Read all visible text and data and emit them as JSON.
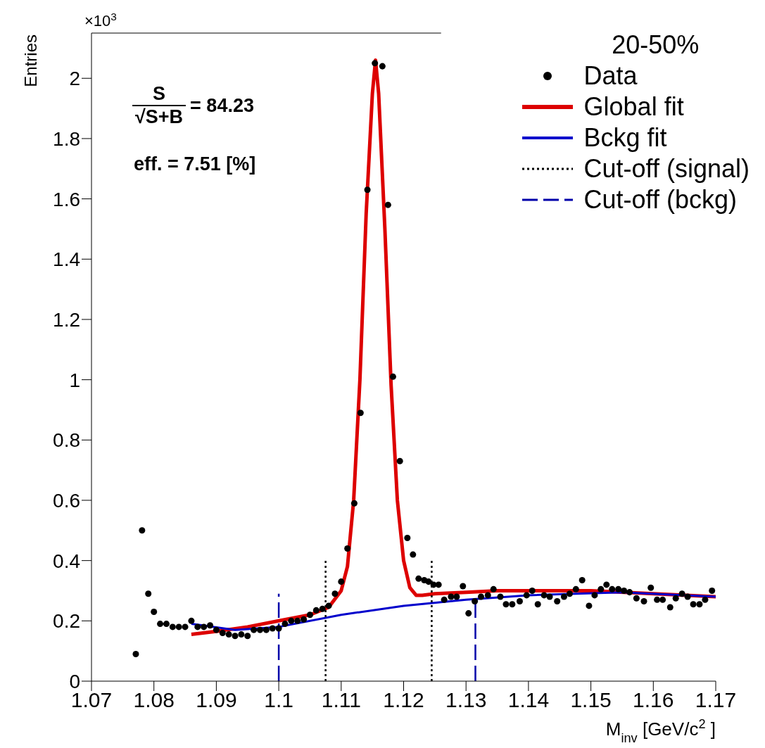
{
  "chart_data": {
    "type": "scatter",
    "xlabel": "M$_{inv}$ [GeV/c$^{2}$]",
    "ylabel": "Entries",
    "legend_title": "20-50%",
    "legend": "top right",
    "annotations": [
      "×10$^{3}$",
      "S",
      "√S+B",
      "= 84.23",
      "eff. = 7.51 [%]"
    ],
    "xlim": [
      1.07,
      1.17
    ],
    "xticks": [
      1.07,
      1.08,
      1.09,
      1.1,
      1.11,
      1.12,
      1.13,
      1.14,
      1.15,
      1.16,
      1.17
    ],
    "ylim": [
      0,
      2.15
    ],
    "yticks": [
      0,
      0.2,
      0.4,
      0.6,
      0.8,
      1,
      1.2,
      1.4,
      1.6,
      1.8,
      2
    ],
    "series": [
      {
        "name": "Data",
        "marker": "circle",
        "color": "#000000",
        "x": [
          1.0771,
          1.0781,
          1.0791,
          1.08,
          1.081,
          1.082,
          1.083,
          1.084,
          1.085,
          1.086,
          1.087,
          1.088,
          1.089,
          1.09,
          1.091,
          1.092,
          1.093,
          1.094,
          1.095,
          1.096,
          1.097,
          1.098,
          1.099,
          1.1,
          1.101,
          1.102,
          1.103,
          1.104,
          1.105,
          1.106,
          1.107,
          1.108,
          1.109,
          1.11,
          1.111,
          1.1121,
          1.1131,
          1.1142,
          1.1154,
          1.1166,
          1.1175,
          1.1183,
          1.1194,
          1.1206,
          1.1215,
          1.1224,
          1.1233,
          1.124,
          1.1248,
          1.1256,
          1.1265,
          1.1276,
          1.1285,
          1.1295,
          1.1304,
          1.1314,
          1.1324,
          1.1335,
          1.1344,
          1.1355,
          1.1364,
          1.1374,
          1.1386,
          1.1397,
          1.1406,
          1.1415,
          1.1425,
          1.1434,
          1.1446,
          1.1457,
          1.1466,
          1.1476,
          1.1486,
          1.1497,
          1.1506,
          1.1516,
          1.1525,
          1.1534,
          1.1544,
          1.1553,
          1.1562,
          1.1573,
          1.1585,
          1.1596,
          1.1606,
          1.1615,
          1.1627,
          1.1636,
          1.1646,
          1.1655,
          1.1664,
          1.1674,
          1.1683,
          1.1694
        ],
        "values": [
          0.09,
          0.5,
          0.29,
          0.23,
          0.19,
          0.19,
          0.18,
          0.18,
          0.18,
          0.2,
          0.18,
          0.18,
          0.185,
          0.17,
          0.16,
          0.155,
          0.15,
          0.155,
          0.15,
          0.17,
          0.17,
          0.17,
          0.175,
          0.175,
          0.19,
          0.2,
          0.2,
          0.205,
          0.22,
          0.235,
          0.24,
          0.25,
          0.29,
          0.33,
          0.44,
          0.59,
          0.89,
          1.63,
          2.05,
          2.04,
          1.58,
          1.01,
          0.73,
          0.475,
          0.42,
          0.34,
          0.335,
          0.33,
          0.32,
          0.32,
          0.27,
          0.28,
          0.28,
          0.315,
          0.225,
          0.265,
          0.28,
          0.285,
          0.305,
          0.28,
          0.255,
          0.255,
          0.265,
          0.285,
          0.3,
          0.255,
          0.285,
          0.28,
          0.265,
          0.28,
          0.29,
          0.305,
          0.335,
          0.25,
          0.285,
          0.305,
          0.32,
          0.305,
          0.305,
          0.3,
          0.295,
          0.275,
          0.265,
          0.31,
          0.27,
          0.27,
          0.245,
          0.275,
          0.29,
          0.28,
          0.255,
          0.255,
          0.27,
          0.3
        ]
      },
      {
        "name": "Global fit",
        "type": "line",
        "marker": "none",
        "line_style": "solid",
        "color": "#dd0000",
        "x": [
          1.086,
          1.09,
          1.095,
          1.1,
          1.105,
          1.108,
          1.11,
          1.111,
          1.112,
          1.113,
          1.114,
          1.115,
          1.1155,
          1.116,
          1.117,
          1.118,
          1.119,
          1.12,
          1.121,
          1.122,
          1.123,
          1.125,
          1.13,
          1.135,
          1.14,
          1.15,
          1.16,
          1.17
        ],
        "values": [
          0.155,
          0.165,
          0.18,
          0.2,
          0.22,
          0.245,
          0.3,
          0.38,
          0.6,
          1.0,
          1.55,
          1.95,
          2.06,
          1.95,
          1.5,
          0.98,
          0.6,
          0.4,
          0.31,
          0.285,
          0.285,
          0.29,
          0.295,
          0.3,
          0.3,
          0.3,
          0.29,
          0.28
        ]
      },
      {
        "name": "Bckg fit",
        "type": "line",
        "marker": "none",
        "line_style": "solid",
        "color": "#0000cc",
        "x": [
          1.086,
          1.093,
          1.1,
          1.11,
          1.12,
          1.13,
          1.14,
          1.155,
          1.17
        ],
        "values": [
          0.19,
          0.17,
          0.18,
          0.22,
          0.25,
          0.27,
          0.285,
          0.295,
          0.28
        ]
      },
      {
        "name": "Cut-off (signal)",
        "type": "line",
        "marker": "none",
        "line_style": "dotted",
        "color": "#000000",
        "x": [
          1.1075,
          1.1075,
          1.116,
          1.1245,
          1.1245
        ],
        "values": [
          0,
          0.4,
          null,
          0,
          0.4
        ]
      },
      {
        "name": "Cut-off (bckg)",
        "type": "line",
        "marker": "none",
        "line_style": "dashed",
        "color": "#0000aa",
        "x": [
          1.1,
          1.1,
          1.116,
          1.1315,
          1.1315
        ],
        "values": [
          0,
          0.29,
          null,
          0,
          0.26
        ]
      }
    ]
  }
}
